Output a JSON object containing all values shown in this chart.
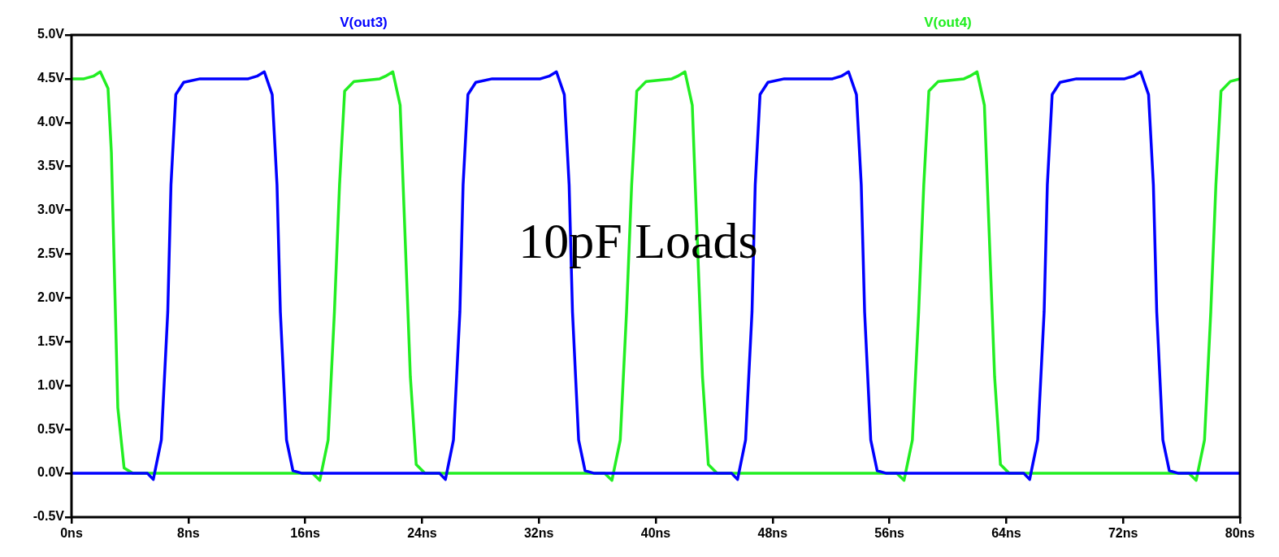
{
  "chart_data": {
    "type": "line",
    "annotations": [
      "10pF Loads"
    ],
    "legend": "top",
    "grid": false,
    "marker": "none",
    "line_style": "solid",
    "xlim": [
      0,
      80
    ],
    "xticks": [
      {
        "value": 0,
        "label": "0ns"
      },
      {
        "value": 8,
        "label": "8ns"
      },
      {
        "value": 16,
        "label": "16ns"
      },
      {
        "value": 24,
        "label": "24ns"
      },
      {
        "value": 32,
        "label": "32ns"
      },
      {
        "value": 40,
        "label": "40ns"
      },
      {
        "value": 48,
        "label": "48ns"
      },
      {
        "value": 56,
        "label": "56ns"
      },
      {
        "value": 64,
        "label": "64ns"
      },
      {
        "value": 72,
        "label": "72ns"
      },
      {
        "value": 80,
        "label": "80ns"
      }
    ],
    "ylim": [
      -0.5,
      5.0
    ],
    "yticks": [
      {
        "value": -0.5,
        "label": "-0.5V"
      },
      {
        "value": 0,
        "label": "0.0V"
      },
      {
        "value": 0.5,
        "label": "0.5V"
      },
      {
        "value": 1.0,
        "label": "1.0V"
      },
      {
        "value": 1.5,
        "label": "1.5V"
      },
      {
        "value": 2.0,
        "label": "2.0V"
      },
      {
        "value": 2.5,
        "label": "2.5V"
      },
      {
        "value": 3.0,
        "label": "3.0V"
      },
      {
        "value": 3.5,
        "label": "3.5V"
      },
      {
        "value": 4.0,
        "label": "4.0V"
      },
      {
        "value": 4.5,
        "label": "4.5V"
      },
      {
        "value": 5.0,
        "label": "5.0V"
      }
    ],
    "series": [
      {
        "name": "V(out3)",
        "color": "#0000ff",
        "x": [
          0,
          5.2,
          5.6,
          6.15,
          6.59,
          6.81,
          7.14,
          7.68,
          8.8,
          12.1,
          12.7,
          13.2,
          13.74,
          14.07,
          14.3,
          14.72,
          15.16,
          15.8,
          25.2,
          25.6,
          26.15,
          26.59,
          26.81,
          27.14,
          27.68,
          28.8,
          32.1,
          32.7,
          33.2,
          33.74,
          34.07,
          34.3,
          34.72,
          35.16,
          35.8,
          45.2,
          45.6,
          46.15,
          46.59,
          46.81,
          47.14,
          47.68,
          48.8,
          52.1,
          52.7,
          53.2,
          53.74,
          54.07,
          54.3,
          54.72,
          55.16,
          55.8,
          65.2,
          65.6,
          66.15,
          66.59,
          66.81,
          67.14,
          67.68,
          68.8,
          72.1,
          72.7,
          73.2,
          73.74,
          74.07,
          74.3,
          74.72,
          75.16,
          75.8,
          80
        ],
        "values": [
          0,
          0,
          -0.07,
          0.38,
          1.84,
          3.29,
          4.32,
          4.46,
          4.5,
          4.5,
          4.53,
          4.58,
          4.32,
          3.29,
          1.84,
          0.38,
          0.03,
          0,
          0,
          -0.07,
          0.38,
          1.84,
          3.29,
          4.32,
          4.46,
          4.5,
          4.5,
          4.53,
          4.58,
          4.32,
          3.29,
          1.84,
          0.38,
          0.03,
          0,
          0,
          -0.07,
          0.38,
          1.84,
          3.29,
          4.32,
          4.46,
          4.5,
          4.5,
          4.53,
          4.58,
          4.32,
          3.29,
          1.84,
          0.38,
          0.03,
          0,
          0,
          -0.07,
          0.38,
          1.84,
          3.29,
          4.32,
          4.46,
          4.5,
          4.5,
          4.53,
          4.58,
          4.32,
          3.29,
          1.84,
          0.38,
          0.03,
          0,
          0
        ]
      },
      {
        "name": "V(out4)",
        "color": "#22ee22",
        "x": [
          0,
          0.85,
          1.5,
          1.97,
          2.5,
          2.73,
          2.95,
          3.17,
          3.6,
          4.2,
          16.5,
          17.0,
          17.57,
          18.0,
          18.35,
          18.7,
          19.34,
          21.1,
          21.5,
          22.0,
          22.5,
          22.86,
          23.2,
          23.6,
          24.2,
          36.5,
          37.0,
          37.57,
          38.0,
          38.35,
          38.7,
          39.34,
          41.1,
          41.5,
          42.0,
          42.5,
          42.86,
          43.2,
          43.6,
          44.2,
          56.5,
          57.0,
          57.57,
          58.0,
          58.35,
          58.7,
          59.34,
          61.1,
          61.5,
          62.0,
          62.5,
          62.86,
          63.2,
          63.6,
          64.2,
          76.5,
          77.0,
          77.57,
          78.0,
          78.35,
          78.7,
          79.34,
          80
        ],
        "values": [
          4.5,
          4.5,
          4.53,
          4.58,
          4.39,
          3.66,
          2.2,
          0.75,
          0.06,
          0,
          0,
          -0.08,
          0.38,
          1.84,
          3.29,
          4.36,
          4.47,
          4.5,
          4.53,
          4.58,
          4.2,
          2.6,
          1.1,
          0.1,
          0,
          0,
          -0.08,
          0.38,
          1.84,
          3.29,
          4.36,
          4.47,
          4.5,
          4.53,
          4.58,
          4.2,
          2.6,
          1.1,
          0.1,
          0,
          0,
          -0.08,
          0.38,
          1.84,
          3.29,
          4.36,
          4.47,
          4.5,
          4.53,
          4.58,
          4.2,
          2.6,
          1.1,
          0.1,
          0,
          0,
          -0.08,
          0.38,
          1.84,
          3.29,
          4.36,
          4.47,
          4.5
        ]
      }
    ]
  }
}
